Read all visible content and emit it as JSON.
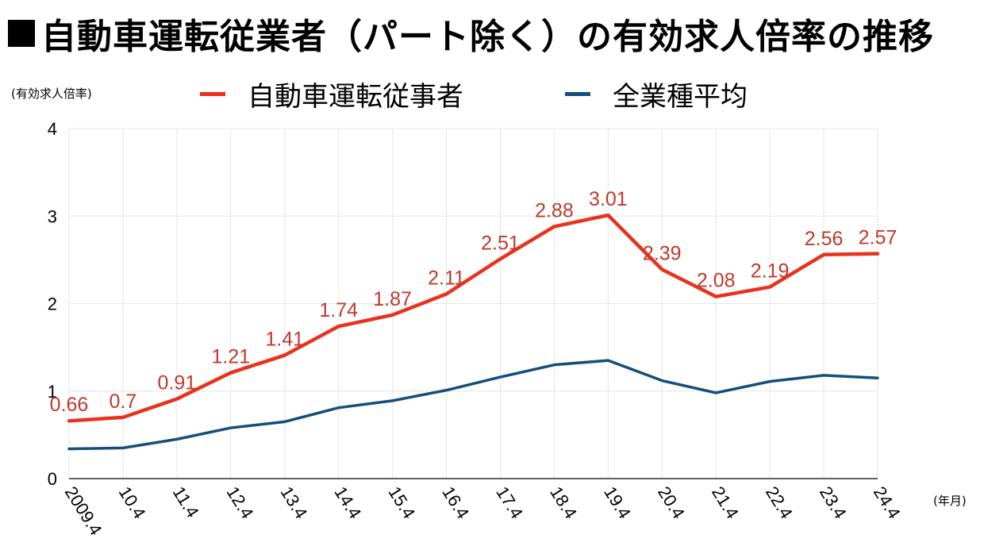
{
  "title": "■自動車運転従業者（パート除く）の有効求人倍率の推移",
  "title_text": "自動車運転従業者（パート除く）の有効求人倍率の推移",
  "colors": {
    "auto": "#e8321e",
    "avg": "#134f7b",
    "label": "#c0392b",
    "grid": "#e6e6e6"
  },
  "chart_data": {
    "type": "line",
    "title": "自動車運転従業者（パート除く）の有効求人倍率の推移",
    "ylabel": "(有効求人倍率)",
    "xlabel": "(年月)",
    "categories": [
      "2009.4",
      "10.4",
      "11.4",
      "12.4",
      "13.4",
      "14.4",
      "15.4",
      "16.4",
      "17.4",
      "18.4",
      "19.4",
      "20.4",
      "21.4",
      "22.4",
      "23.4",
      "24.4"
    ],
    "yticks": [
      "0",
      "1",
      "2",
      "3",
      "4"
    ],
    "ylim": [
      0,
      4
    ],
    "grid": true,
    "legend_position": "top",
    "series": [
      {
        "name": "自動車運転従事者",
        "color": "#e8321e",
        "values": [
          0.66,
          0.7,
          0.91,
          1.21,
          1.41,
          1.74,
          1.87,
          2.11,
          2.51,
          2.88,
          3.01,
          2.39,
          2.08,
          2.19,
          2.56,
          2.57
        ],
        "labels": [
          "0.66",
          "0.7",
          "0.91",
          "1.21",
          "1.41",
          "1.74",
          "1.87",
          "2.11",
          "2.51",
          "2.88",
          "3.01",
          "2.39",
          "2.08",
          "2.19",
          "2.56",
          "2.57"
        ]
      },
      {
        "name": "全業種平均",
        "color": "#134f7b",
        "values": [
          0.34,
          0.35,
          0.45,
          0.58,
          0.65,
          0.81,
          0.89,
          1.01,
          1.16,
          1.3,
          1.35,
          1.12,
          0.98,
          1.11,
          1.18,
          1.15
        ]
      }
    ]
  }
}
